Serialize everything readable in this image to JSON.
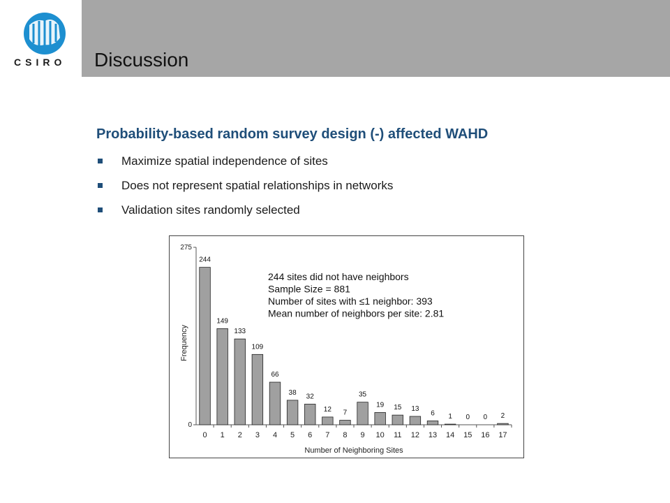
{
  "header": {
    "title": "Discussion",
    "logo_text": "CSIRO"
  },
  "content": {
    "heading": "Probability-based random survey design (-) affected WAHD",
    "bullets": [
      "Maximize spatial independence of sites",
      "Does not represent spatial relationships in networks",
      "Validation sites randomly selected"
    ]
  },
  "colors": {
    "header_bar": "#a6a6a6",
    "heading": "#1f4e79",
    "bar_fill": "#a0a0a0",
    "logo": "#1d8fd0"
  },
  "chart_data": {
    "type": "bar",
    "xlabel": "Number of Neighboring Sites",
    "ylabel": "Frequency",
    "ylim": [
      0,
      275
    ],
    "yticks": [
      0,
      275
    ],
    "categories": [
      "0",
      "1",
      "2",
      "3",
      "4",
      "5",
      "6",
      "7",
      "8",
      "9",
      "10",
      "11",
      "12",
      "13",
      "14",
      "15",
      "16",
      "17"
    ],
    "values": [
      244,
      149,
      133,
      109,
      66,
      38,
      32,
      12,
      7,
      35,
      19,
      15,
      13,
      6,
      1,
      0,
      0,
      2
    ],
    "grid": false,
    "annotations": [
      "244 sites did not have neighbors",
      "Sample Size = 881",
      "Number of sites with ≤1 neighbor: 393",
      "Mean number of neighbors per site: 2.81"
    ]
  }
}
